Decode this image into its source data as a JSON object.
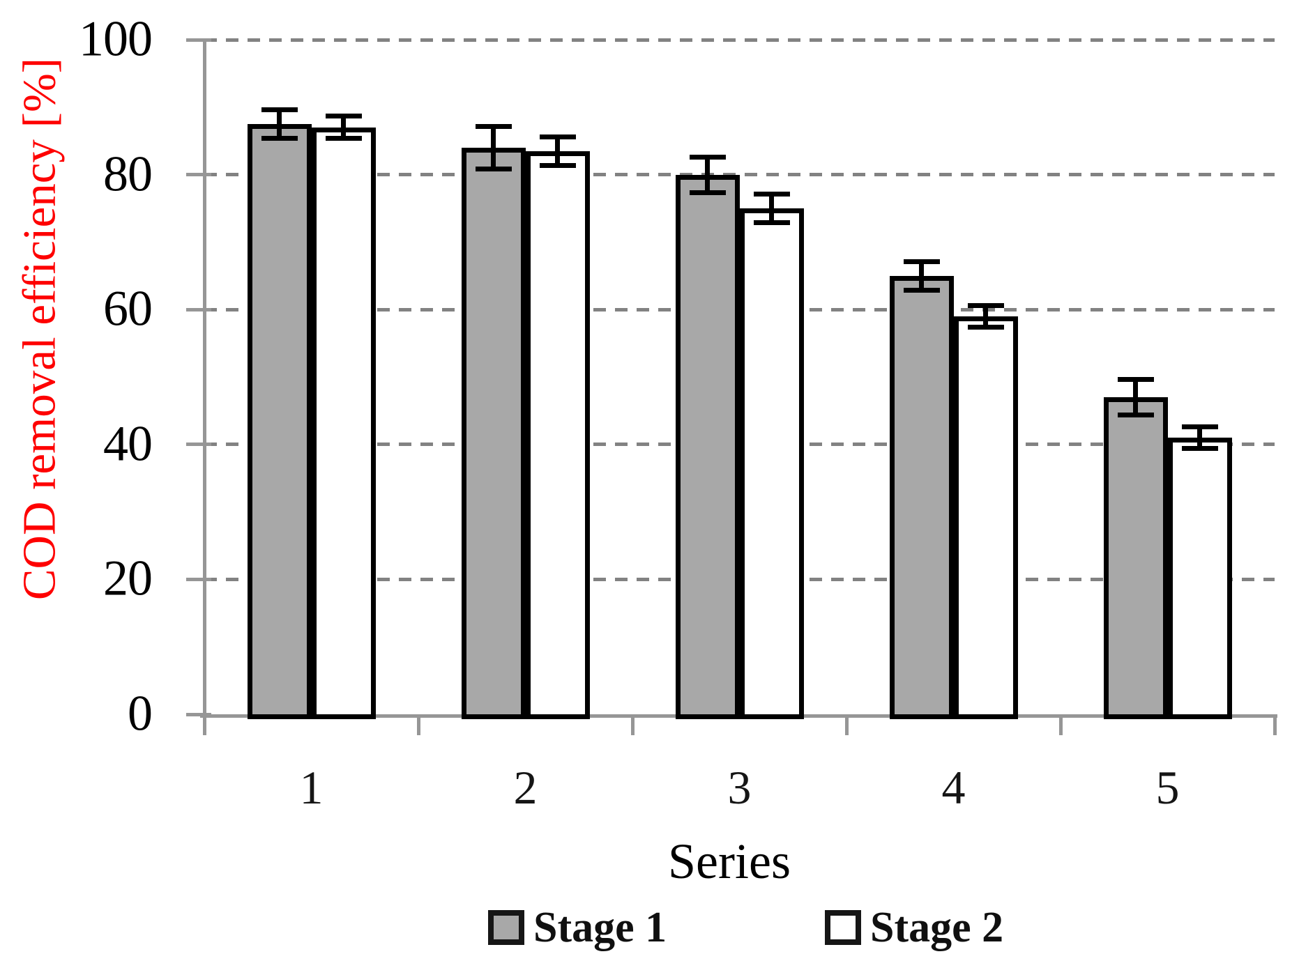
{
  "chart_data": {
    "type": "bar",
    "title": "",
    "categories": [
      "1",
      "2",
      "3",
      "4",
      "5"
    ],
    "series": [
      {
        "name": "Stage 1",
        "fill": "#a8a8a8",
        "values": [
          87.5,
          84,
          80,
          65,
          47
        ],
        "errors": [
          2.5,
          3.5,
          3,
          2.5,
          3
        ]
      },
      {
        "name": "Stage 2",
        "fill": "#ffffff",
        "values": [
          87,
          83.5,
          75,
          59,
          41
        ],
        "errors": [
          2,
          2.5,
          2.5,
          2,
          2
        ]
      }
    ],
    "xlabel": "Series",
    "ylabel": "COD removal efficiency [%]",
    "ylim": [
      0,
      100
    ],
    "yticks": [
      0,
      20,
      40,
      60,
      80,
      100
    ],
    "grid": "horizontal-dashed",
    "legend_position": "bottom",
    "colors": {
      "ylabel_text": "#fe0000",
      "gridline": "#828282",
      "axis": "#969696",
      "bar_border": "#000000",
      "error_bar": "#000000",
      "tick_text": "#000000"
    }
  }
}
